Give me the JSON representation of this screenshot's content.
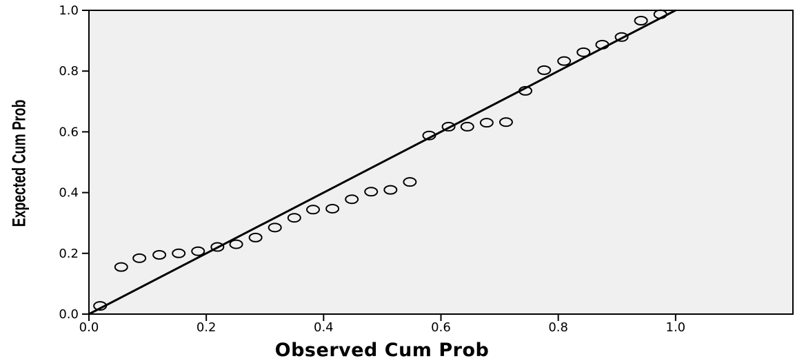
{
  "chart_data": {
    "type": "scatter",
    "title": "",
    "xlabel": "Observed Cum Prob",
    "ylabel": "Expected Cum Prob",
    "xlim": [
      0.0,
      1.2
    ],
    "ylim": [
      0.0,
      1.0
    ],
    "xticks": [
      "0.0",
      "0.2",
      "0.4",
      "0.6",
      "0.8",
      "1.0"
    ],
    "yticks": [
      "0.0",
      "0.2",
      "0.4",
      "0.6",
      "0.8",
      "1.0"
    ],
    "grid": false,
    "legend": "none",
    "reference_line": {
      "from": [
        0,
        0
      ],
      "to": [
        1,
        1
      ]
    },
    "colors": {
      "plot_background": "#f0f0f0",
      "points": "#000000",
      "line": "#000000"
    },
    "points": [
      {
        "x": 0.019,
        "y": 0.027
      },
      {
        "x": 0.055,
        "y": 0.155
      },
      {
        "x": 0.086,
        "y": 0.184
      },
      {
        "x": 0.12,
        "y": 0.195
      },
      {
        "x": 0.153,
        "y": 0.2
      },
      {
        "x": 0.186,
        "y": 0.207
      },
      {
        "x": 0.219,
        "y": 0.221
      },
      {
        "x": 0.251,
        "y": 0.23
      },
      {
        "x": 0.284,
        "y": 0.252
      },
      {
        "x": 0.317,
        "y": 0.285
      },
      {
        "x": 0.35,
        "y": 0.317
      },
      {
        "x": 0.382,
        "y": 0.344
      },
      {
        "x": 0.415,
        "y": 0.347
      },
      {
        "x": 0.448,
        "y": 0.378
      },
      {
        "x": 0.481,
        "y": 0.403
      },
      {
        "x": 0.514,
        "y": 0.409
      },
      {
        "x": 0.547,
        "y": 0.435
      },
      {
        "x": 0.58,
        "y": 0.588
      },
      {
        "x": 0.613,
        "y": 0.617
      },
      {
        "x": 0.645,
        "y": 0.617
      },
      {
        "x": 0.678,
        "y": 0.63
      },
      {
        "x": 0.711,
        "y": 0.632
      },
      {
        "x": 0.744,
        "y": 0.735
      },
      {
        "x": 0.776,
        "y": 0.803
      },
      {
        "x": 0.81,
        "y": 0.833
      },
      {
        "x": 0.843,
        "y": 0.862
      },
      {
        "x": 0.875,
        "y": 0.887
      },
      {
        "x": 0.908,
        "y": 0.912
      },
      {
        "x": 0.941,
        "y": 0.966
      },
      {
        "x": 0.974,
        "y": 0.987
      }
    ]
  }
}
